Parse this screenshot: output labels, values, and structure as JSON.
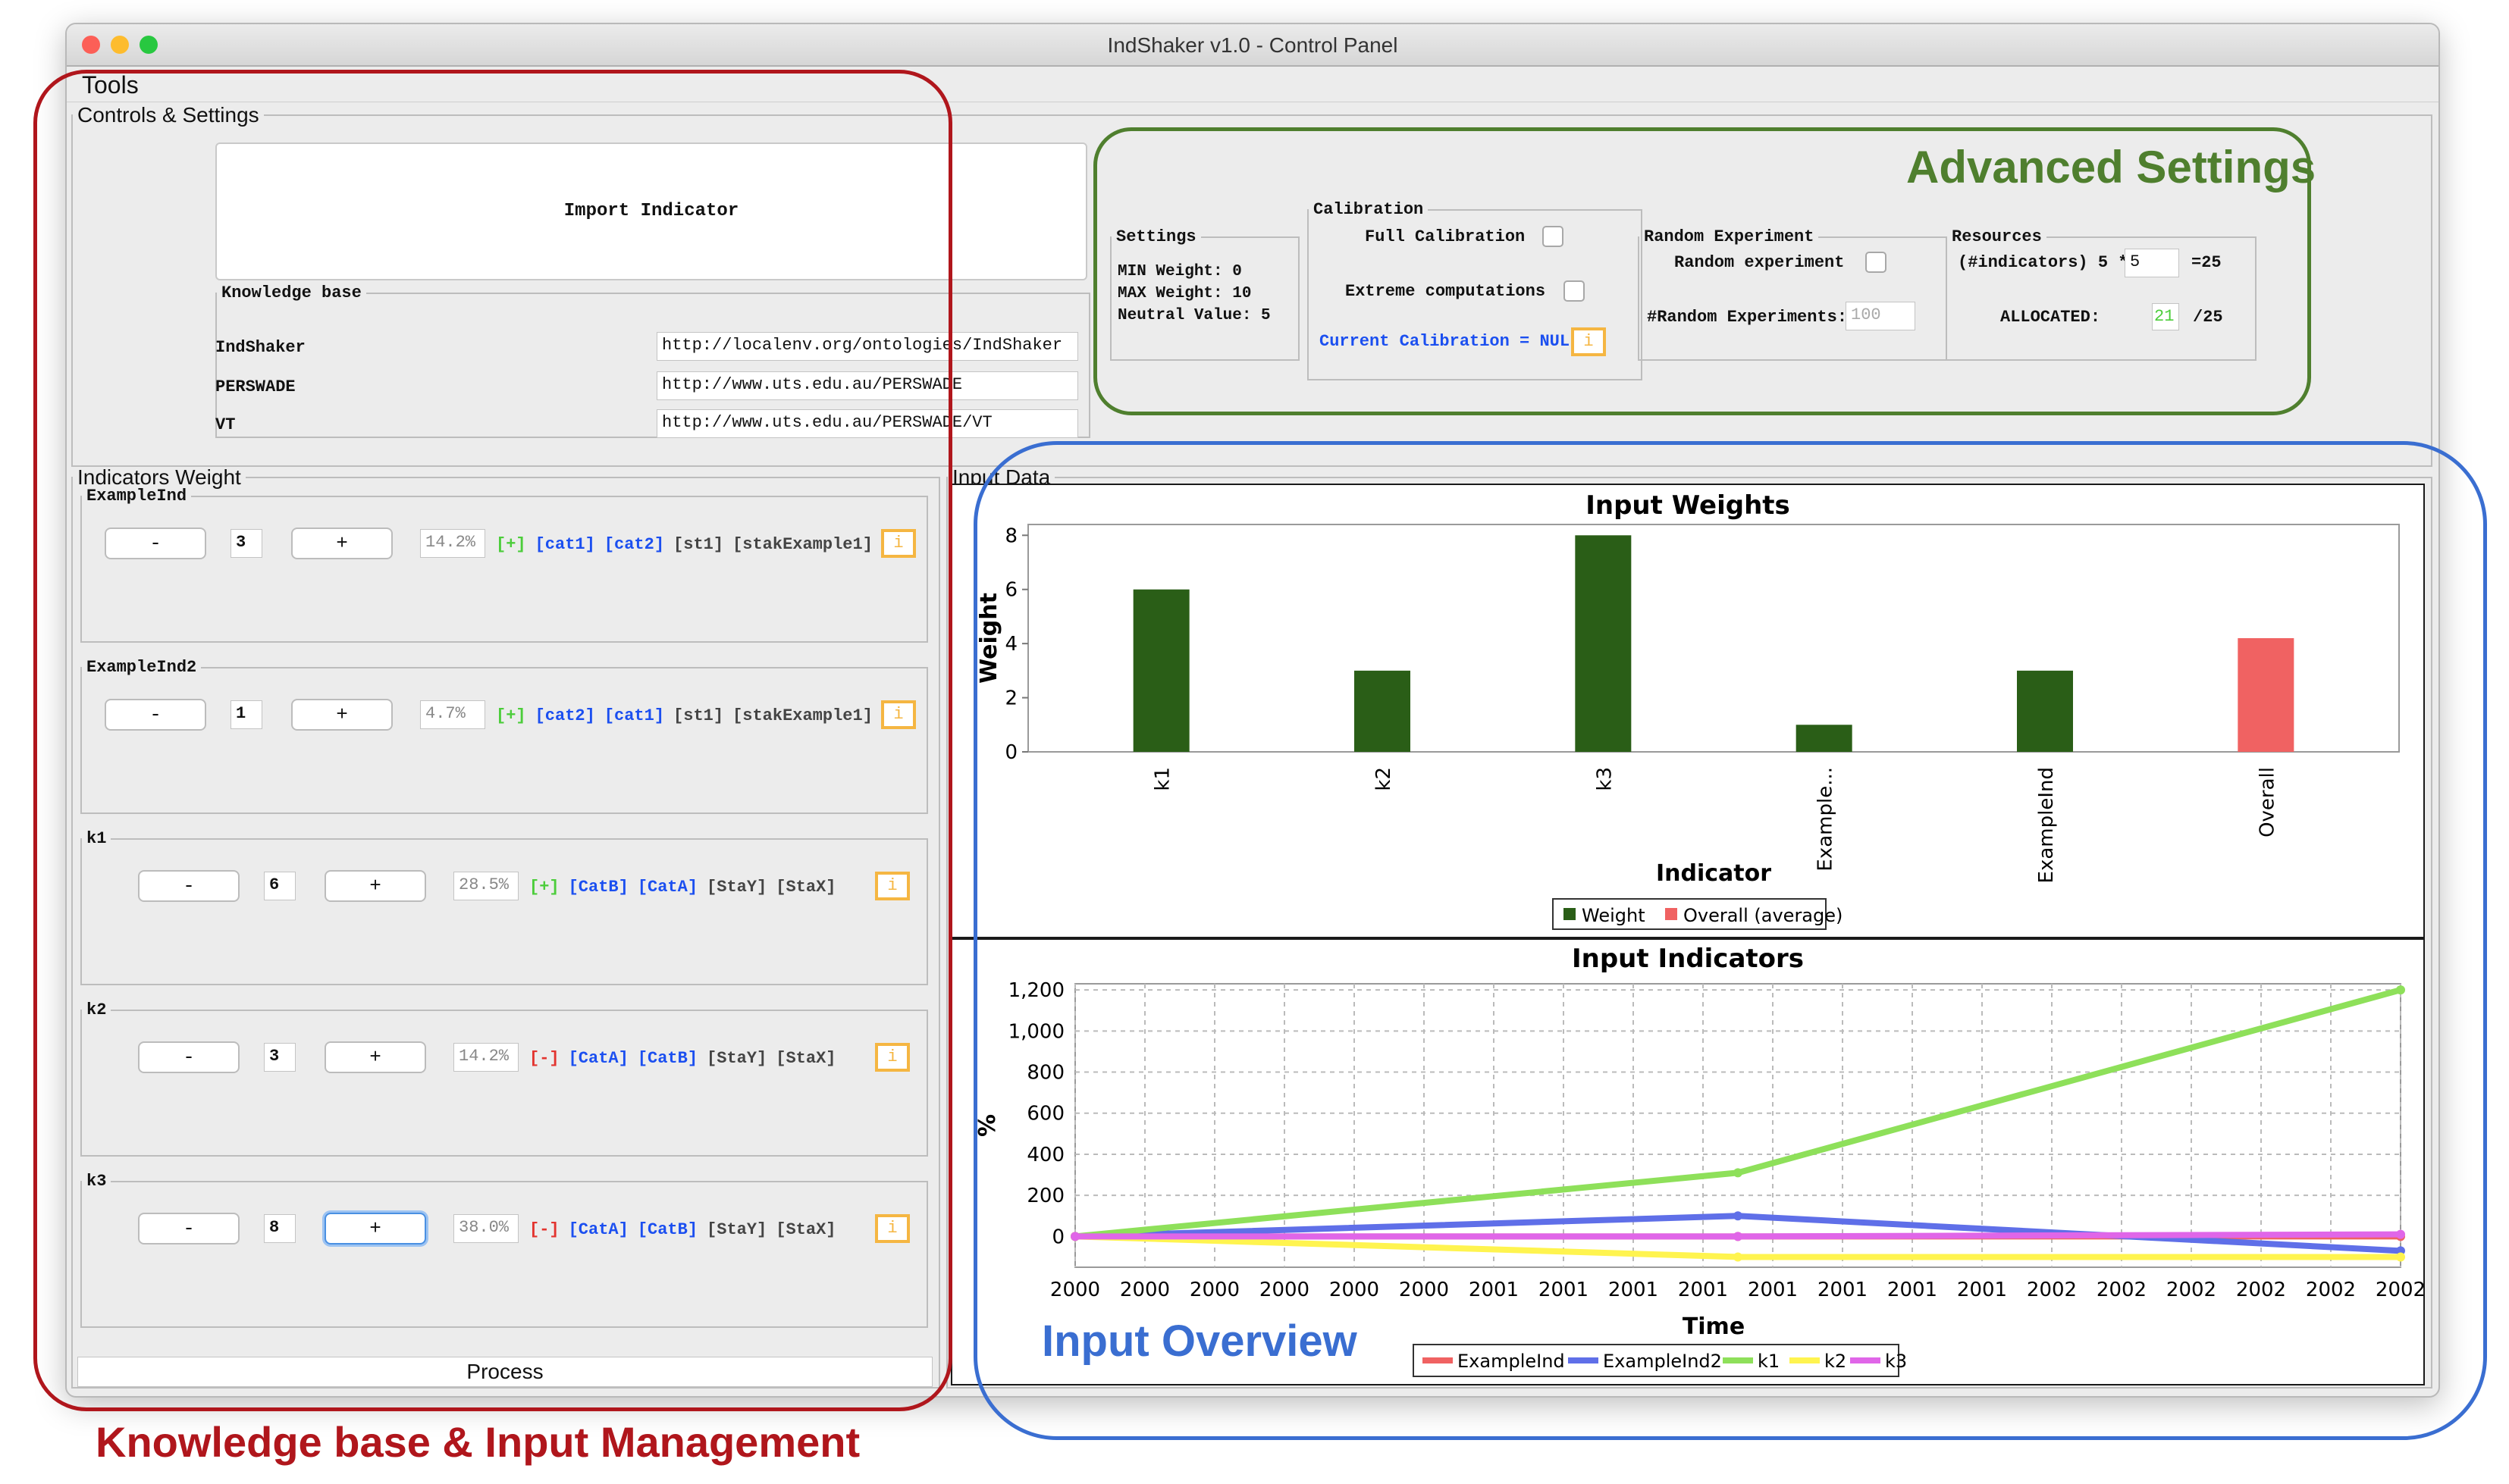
{
  "window": {
    "title": "IndShaker v1.0 - Control Panel"
  },
  "menu": {
    "tools": "Tools"
  },
  "controls": {
    "legend": "Controls & Settings",
    "import_label": "Import Indicator",
    "kb": {
      "legend": "Knowledge base",
      "rows": [
        {
          "name": "IndShaker",
          "url": "http://localenv.org/ontologies/IndShaker"
        },
        {
          "name": "PERSWADE",
          "url": "http://www.uts.edu.au/PERSWADE"
        },
        {
          "name": "VT",
          "url": "http://www.uts.edu.au/PERSWADE/VT"
        }
      ]
    }
  },
  "advanced": {
    "settings": {
      "legend": "Settings",
      "min": "MIN Weight: 0",
      "max": "MAX Weight: 10",
      "neutral": "Neutral Value: 5"
    },
    "calibration": {
      "legend": "Calibration",
      "full": "Full Calibration",
      "extreme": "Extreme computations",
      "current": "Current Calibration = NULL",
      "info": "i"
    },
    "random": {
      "legend": "Random Experiment",
      "experiment": "Random experiment",
      "count_label": "#Random Experiments:",
      "count_value": "100"
    },
    "resources": {
      "legend": "Resources",
      "formula_label": "(#indicators) 5 *",
      "formula_value": "5",
      "formula_result": "=25",
      "allocated_label": "ALLOCATED:",
      "allocated_value": "21",
      "allocated_total": "/25"
    }
  },
  "weights": {
    "legend": "Indicators Weight",
    "minus": "-",
    "plus": "+",
    "info": "i",
    "items": [
      {
        "name": "ExampleInd",
        "value": "3",
        "pct": "14.2%",
        "sign": "[+]",
        "sign_color": "#4ccd3b",
        "cats": [
          "[cat1]",
          "[cat2]"
        ],
        "stakes": [
          "[st1]",
          "[stakExample1]"
        ]
      },
      {
        "name": "ExampleInd2",
        "value": "1",
        "pct": "4.7%",
        "sign": "[+]",
        "sign_color": "#4ccd3b",
        "cats": [
          "[cat2]",
          "[cat1]"
        ],
        "stakes": [
          "[st1]",
          "[stakExample1]"
        ]
      },
      {
        "name": "k1",
        "value": "6",
        "pct": "28.5%",
        "sign": "[+]",
        "sign_color": "#4ccd3b",
        "cats": [
          "[CatB]",
          "[CatA]"
        ],
        "stakes": [
          "[StaY]",
          "[StaX]"
        ]
      },
      {
        "name": "k2",
        "value": "3",
        "pct": "14.2%",
        "sign": "[-]",
        "sign_color": "#e3342f",
        "cats": [
          "[CatA]",
          "[CatB]"
        ],
        "stakes": [
          "[StaY]",
          "[StaX]"
        ]
      },
      {
        "name": "k3",
        "value": "8",
        "pct": "38.0%",
        "sign": "[-]",
        "sign_color": "#e3342f",
        "cats": [
          "[CatA]",
          "[CatB]"
        ],
        "stakes": [
          "[StaY]",
          "[StaX]"
        ]
      }
    ],
    "process": "Process"
  },
  "input": {
    "legend": "Input Data"
  },
  "chart_data": [
    {
      "type": "bar",
      "title": "Input Weights",
      "xlabel": "Indicator",
      "ylabel": "Weight",
      "categories": [
        "k1",
        "k2",
        "k3",
        "Example...",
        "ExampleInd",
        "Overall"
      ],
      "series": [
        {
          "name": "Weight",
          "color": "#2a5e17",
          "values": [
            6,
            3,
            8,
            1,
            3,
            null
          ]
        },
        {
          "name": "Overall (average)",
          "color": "#f06262",
          "values": [
            null,
            null,
            null,
            null,
            null,
            4.2
          ]
        }
      ],
      "yticks": [
        "0",
        "2",
        "4",
        "6",
        "8"
      ],
      "ylim": [
        0,
        8.4
      ],
      "legend": "bottom",
      "grid": false
    },
    {
      "type": "line",
      "title": "Input Indicators",
      "xlabel": "Time",
      "ylabel": "%",
      "x_ticks": [
        "2000",
        "2000",
        "2000",
        "2000",
        "2000",
        "2000",
        "2001",
        "2001",
        "2001",
        "2001",
        "2001",
        "2001",
        "2001",
        "2001",
        "2002",
        "2002",
        "2002",
        "2002",
        "2002",
        "2002"
      ],
      "x": [
        0,
        0.5,
        1
      ],
      "yticks": [
        "0",
        "200",
        "400",
        "600",
        "800",
        "1,000",
        "1,200"
      ],
      "ylim": [
        -150,
        1230
      ],
      "series": [
        {
          "name": "ExampleInd",
          "color": "#f06262",
          "values": [
            0,
            0,
            0
          ]
        },
        {
          "name": "ExampleInd2",
          "color": "#5f6fe8",
          "values": [
            0,
            100,
            -70
          ]
        },
        {
          "name": "k1",
          "color": "#8ee05a",
          "values": [
            0,
            310,
            1200
          ]
        },
        {
          "name": "k2",
          "color": "#fff44f",
          "values": [
            0,
            -100,
            -100
          ]
        },
        {
          "name": "k3",
          "color": "#e066e8",
          "values": [
            0,
            0,
            10
          ]
        }
      ],
      "legend": "bottom",
      "grid": true
    }
  ],
  "annotations": {
    "advanced": "Advanced Settings",
    "overview": "Input Overview",
    "kb_input": "Knowledge base & Input Management",
    "colors": {
      "red": "#b0161c",
      "green": "#4f7f2e",
      "blue": "#3a6ed1"
    }
  }
}
